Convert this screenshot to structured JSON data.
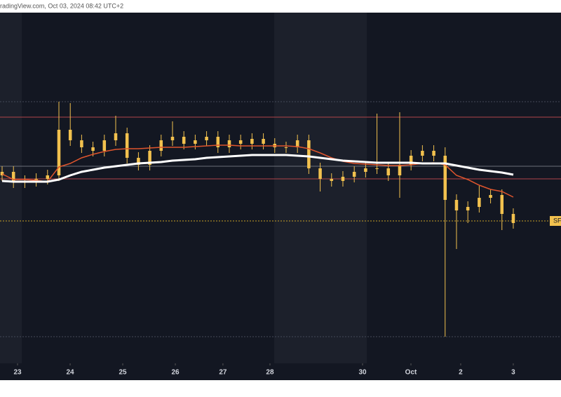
{
  "chart_data": {
    "type": "candlestick",
    "header": "radingView.com, Oct 03, 2024 08:42 UTC+2",
    "price_tag": "SF",
    "color": "#f2c14e",
    "xlim": [
      0,
      49.2
    ],
    "xticks": [
      {
        "value": 1.36,
        "label": "23"
      },
      {
        "value": 5.99,
        "label": "24"
      },
      {
        "value": 10.62,
        "label": "25"
      },
      {
        "value": 15.25,
        "label": "26"
      },
      {
        "value": 19.44,
        "label": "27"
      },
      {
        "value": 23.58,
        "label": "28"
      },
      {
        "value": 31.73,
        "label": "30"
      },
      {
        "value": 35.99,
        "label": "Oct"
      },
      {
        "value": 40.37,
        "label": "2"
      },
      {
        "value": 45,
        "label": "3"
      }
    ],
    "ylim": [
      0,
      500
    ],
    "open": [
      268,
      273,
      258,
      260,
      263,
      268,
      333,
      318,
      308,
      303,
      318,
      328,
      293,
      283,
      303,
      318,
      323,
      313,
      318,
      323,
      308,
      318,
      313,
      320,
      313,
      308,
      308,
      318,
      278,
      263,
      260,
      266,
      273,
      278,
      278,
      268,
      283,
      296,
      303,
      296,
      233,
      218,
      223,
      236,
      240,
      213
    ],
    "high": [
      281,
      281,
      268,
      271,
      276,
      373,
      371,
      326,
      316,
      326,
      353,
      336,
      301,
      311,
      326,
      345,
      331,
      326,
      331,
      331,
      326,
      326,
      328,
      328,
      321,
      316,
      326,
      326,
      286,
      271,
      274,
      281,
      286,
      356,
      286,
      358,
      304,
      311,
      311,
      308,
      241,
      231,
      253,
      248,
      248,
      221
    ],
    "low": [
      260,
      250,
      250,
      252,
      255,
      260,
      310,
      300,
      295,
      295,
      310,
      285,
      275,
      275,
      295,
      310,
      305,
      305,
      310,
      300,
      300,
      305,
      305,
      305,
      300,
      300,
      300,
      270,
      245,
      252,
      252,
      258,
      265,
      270,
      260,
      236,
      275,
      288,
      288,
      38,
      163,
      200,
      215,
      228,
      190,
      192
    ],
    "close": [
      273,
      258,
      260,
      263,
      268,
      333,
      318,
      308,
      303,
      318,
      328,
      293,
      283,
      303,
      318,
      323,
      313,
      318,
      323,
      308,
      318,
      313,
      320,
      313,
      308,
      308,
      318,
      278,
      263,
      260,
      266,
      273,
      278,
      278,
      268,
      283,
      296,
      303,
      296,
      233,
      218,
      223,
      236,
      240,
      213,
      200
    ],
    "series": [
      {
        "color": "#e0552d",
        "values": [
          270,
          262,
          262,
          261,
          259,
          280,
          285,
          293,
          298,
          302,
          305,
          306,
          306,
          307,
          308,
          308,
          308,
          309,
          310,
          311,
          311,
          310,
          310,
          310,
          310,
          310,
          309,
          306,
          300,
          293,
          288,
          285,
          284,
          283,
          282,
          282,
          283,
          285,
          286,
          283,
          268,
          262,
          254,
          248,
          245,
          237
        ]
      },
      {
        "color": "#ffffff",
        "values": [
          260,
          259,
          259,
          259,
          259,
          262,
          268,
          273,
          276,
          279,
          281,
          283,
          285,
          286,
          287,
          289,
          290,
          291,
          293,
          294,
          295,
          296,
          297,
          297,
          297,
          297,
          296,
          295,
          293,
          291,
          289,
          288,
          287,
          286,
          286,
          286,
          286,
          285,
          285,
          285,
          282,
          279,
          276,
          274,
          272,
          269
        ]
      }
    ],
    "levels": [
      {
        "value": 373,
        "color": "#444a58"
      },
      {
        "value": 203,
        "color": "#c9a227"
      },
      {
        "value": 38,
        "color": "#444a58"
      },
      {
        "value": 351,
        "color": "#b0454a"
      },
      {
        "value": 263,
        "color": "#b0454a"
      },
      {
        "value": 281,
        "color": "#6b6f78"
      }
    ]
  }
}
